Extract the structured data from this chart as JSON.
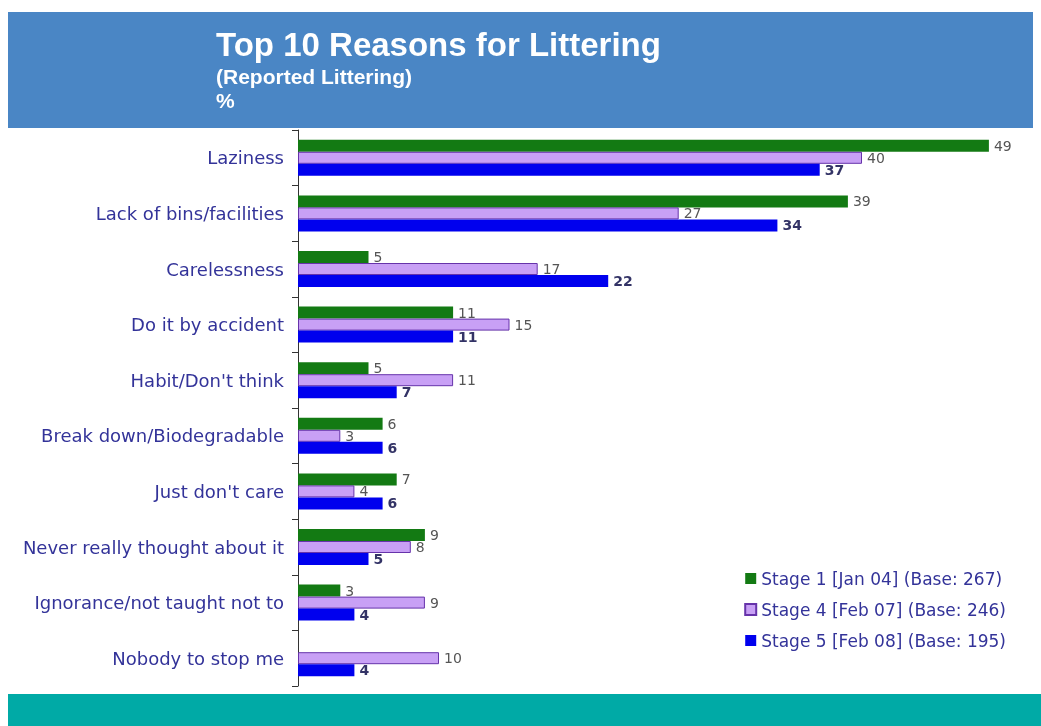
{
  "chart_data": {
    "type": "bar",
    "orientation": "horizontal",
    "title": "Top 10 Reasons for Littering",
    "subtitle": "(Reported Littering)",
    "annotations": [
      "%"
    ],
    "categories": [
      "Laziness",
      "Lack of bins/facilities",
      "Carelessness",
      "Do it by accident",
      "Habit/Don't think",
      "Break down/Biodegradable",
      "Just don't care",
      "Never really thought about it",
      "Ignorance/not taught not to",
      "Nobody to stop me"
    ],
    "series": [
      {
        "name": "Stage 1 [Jan 04] (Base: 267)",
        "color": "#137a13",
        "values": [
          49,
          39,
          5,
          11,
          5,
          6,
          7,
          9,
          3,
          null
        ]
      },
      {
        "name": "Stage 4 [Feb 07] (Base: 246)",
        "color": "#c8a0f5",
        "values": [
          40,
          27,
          17,
          15,
          11,
          3,
          4,
          8,
          9,
          10
        ]
      },
      {
        "name": "Stage 5 [Feb 08] (Base: 195)",
        "color": "#0000ee",
        "values": [
          37,
          34,
          22,
          11,
          7,
          6,
          6,
          5,
          4,
          4
        ]
      }
    ],
    "data_labels": true,
    "legend": "bottom right",
    "tick_labels": "y"
  }
}
